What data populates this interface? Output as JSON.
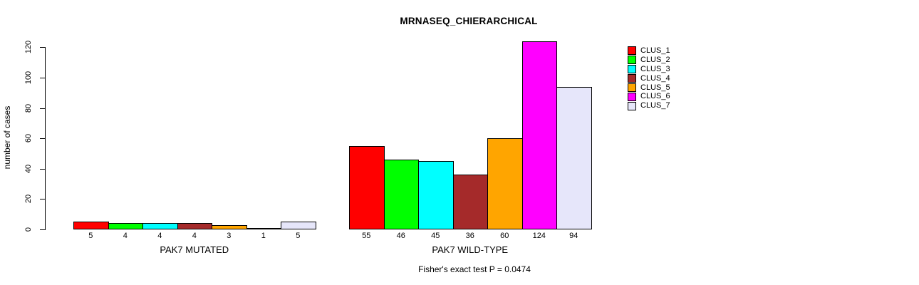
{
  "chart_data": {
    "type": "bar",
    "title": "MRNASEQ_CHIERARCHICAL",
    "ylabel": "number of cases",
    "xlabel": "",
    "ylim": [
      0,
      120
    ],
    "yticks": [
      0,
      20,
      40,
      60,
      80,
      100,
      120
    ],
    "grid": false,
    "legend_position": "right-outside",
    "bar_value_labels": true,
    "categories": [
      "PAK7 MUTATED",
      "PAK7 WILD-TYPE"
    ],
    "series": [
      {
        "name": "CLUS_1",
        "color": "#ff0000",
        "values": [
          5,
          55
        ]
      },
      {
        "name": "CLUS_2",
        "color": "#00ff00",
        "values": [
          4,
          46
        ]
      },
      {
        "name": "CLUS_3",
        "color": "#00ffff",
        "values": [
          4,
          45
        ]
      },
      {
        "name": "CLUS_4",
        "color": "#a52a2a",
        "values": [
          4,
          36
        ]
      },
      {
        "name": "CLUS_5",
        "color": "#ffa500",
        "values": [
          3,
          60
        ]
      },
      {
        "name": "CLUS_6",
        "color": "#ff00ff",
        "values": [
          1,
          124
        ]
      },
      {
        "name": "CLUS_7",
        "color": "#e6e6fa",
        "values": [
          5,
          94
        ]
      }
    ],
    "annotation": "Fisher's exact test P = 0.0474"
  }
}
